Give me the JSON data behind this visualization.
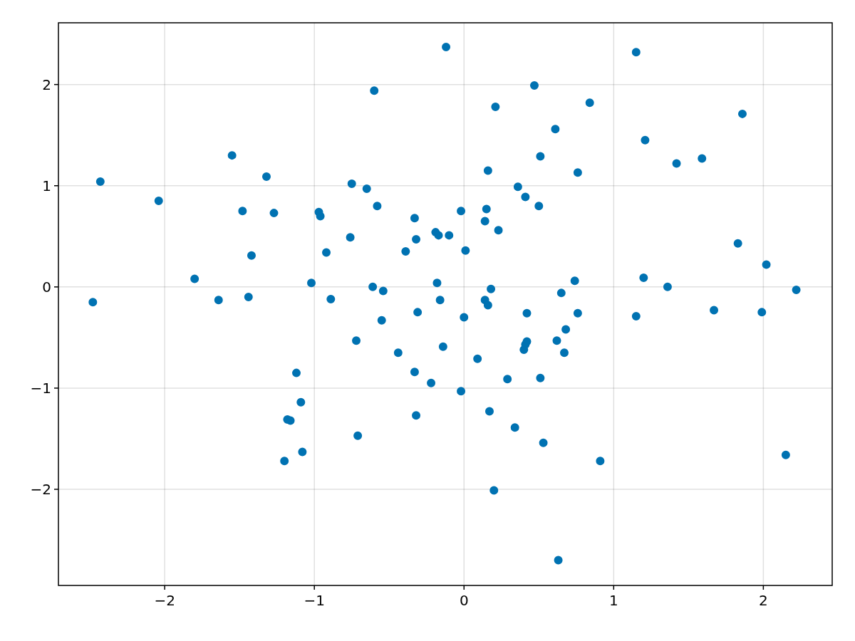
{
  "chart_data": {
    "type": "scatter",
    "xlim": [
      -2.71,
      2.46
    ],
    "ylim": [
      -2.95,
      2.61
    ],
    "xticks": [
      {
        "value": -2,
        "label": "−2"
      },
      {
        "value": -1,
        "label": "−1"
      },
      0,
      1,
      2
    ],
    "yticks": [
      {
        "value": -2,
        "label": "−2"
      },
      {
        "value": -1,
        "label": "−1"
      },
      0,
      1,
      2
    ],
    "grid": true,
    "marker": "circle",
    "series": [
      {
        "color": "#0072b2",
        "x": [
          -2.48,
          -2.43,
          -2.04,
          -1.8,
          -1.64,
          -1.55,
          -1.48,
          -1.44,
          -1.42,
          -1.32,
          -1.27,
          -1.2,
          -1.18,
          -1.16,
          -1.12,
          -1.09,
          -1.08,
          -1.02,
          -0.97,
          -0.96,
          -0.92,
          -0.89,
          -0.76,
          -0.75,
          -0.72,
          -0.71,
          -0.65,
          -0.61,
          -0.6,
          -0.58,
          -0.55,
          -0.54,
          -0.44,
          -0.39,
          -0.33,
          -0.32,
          -0.33,
          -0.32,
          -0.31,
          -0.22,
          -0.19,
          -0.17,
          -0.18,
          -0.16,
          -0.14,
          -0.12,
          -0.1,
          -0.02,
          -0.02,
          0.0,
          0.01,
          0.09,
          0.14,
          0.14,
          0.15,
          0.16,
          0.16,
          0.17,
          0.18,
          0.2,
          0.21,
          0.23,
          0.29,
          0.34,
          0.36,
          0.4,
          0.41,
          0.42,
          0.42,
          0.41,
          0.47,
          0.5,
          0.51,
          0.51,
          0.53,
          0.61,
          0.62,
          0.63,
          0.65,
          0.67,
          0.68,
          0.74,
          0.76,
          0.76,
          0.84,
          0.91,
          1.15,
          1.15,
          1.2,
          1.21,
          1.36,
          1.42,
          1.59,
          1.67,
          1.83,
          1.86,
          1.99,
          2.02,
          2.15,
          2.22
        ],
        "values": [
          -0.15,
          1.04,
          0.85,
          0.08,
          -0.13,
          1.3,
          0.75,
          -0.1,
          0.31,
          1.09,
          0.73,
          -1.72,
          -1.31,
          -1.32,
          -0.85,
          -1.14,
          -1.63,
          0.04,
          0.74,
          0.7,
          0.34,
          -0.12,
          0.49,
          1.02,
          -0.53,
          -1.47,
          0.97,
          0.0,
          1.94,
          0.8,
          -0.33,
          -0.04,
          -0.65,
          0.35,
          0.68,
          0.47,
          -0.84,
          -1.27,
          -0.25,
          -0.95,
          0.54,
          0.51,
          0.04,
          -0.13,
          -0.59,
          2.37,
          0.51,
          0.75,
          -1.03,
          -0.3,
          0.36,
          -0.71,
          0.65,
          -0.13,
          0.77,
          -0.18,
          1.15,
          -1.23,
          -0.02,
          -2.01,
          1.78,
          0.56,
          -0.91,
          -1.39,
          0.99,
          -0.62,
          0.89,
          -0.26,
          -0.54,
          -0.57,
          1.99,
          0.8,
          1.29,
          -0.9,
          -1.54,
          1.56,
          -0.53,
          -2.7,
          -0.06,
          -0.65,
          -0.42,
          0.06,
          1.13,
          -0.26,
          1.82,
          -1.72,
          -0.29,
          2.32,
          0.09,
          1.45,
          0.0,
          1.22,
          1.27,
          -0.23,
          0.43,
          1.71,
          -0.25,
          0.22,
          -1.66,
          -0.03
        ]
      }
    ]
  }
}
